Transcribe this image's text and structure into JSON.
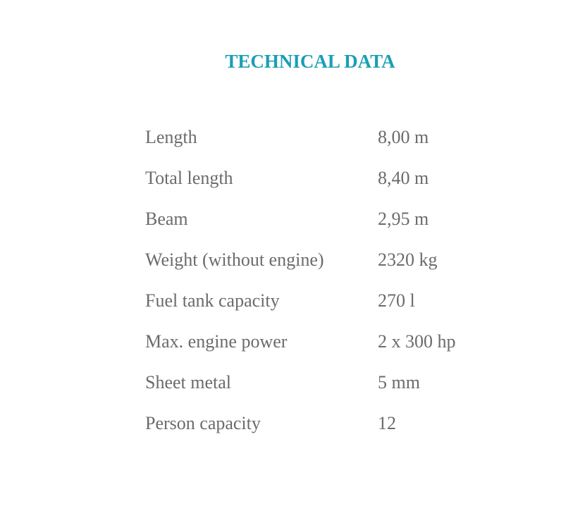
{
  "title": "TECHNICAL DATA",
  "accent_color": "#1a9fb3",
  "rows": [
    {
      "label": "Length",
      "value": "8,00 m"
    },
    {
      "label": "Total length",
      "value": "8,40 m"
    },
    {
      "label": "Beam",
      "value": "2,95 m"
    },
    {
      "label": "Weight (without engine)",
      "value": "2320 kg"
    },
    {
      "label": "Fuel tank capacity",
      "value": "270 l"
    },
    {
      "label": "Max. engine power",
      "value": "2 x 300 hp"
    },
    {
      "label": "Sheet metal",
      "value": "5 mm"
    },
    {
      "label": "Person capacity",
      "value": "12"
    }
  ]
}
